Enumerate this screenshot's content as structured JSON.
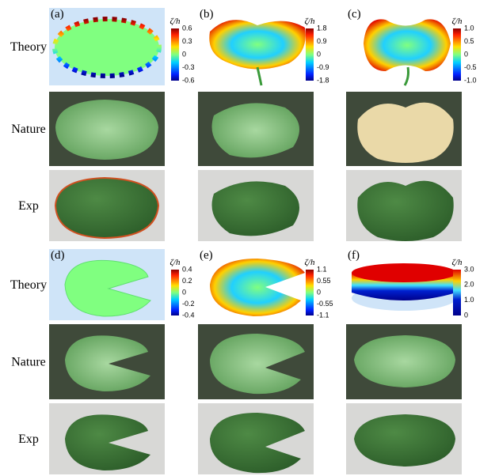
{
  "top_block": {
    "row_labels": [
      "Theory",
      "Nature",
      "Exp"
    ]
  },
  "bottom_block": {
    "row_labels": [
      "Theory",
      "Nature",
      "Exp"
    ]
  },
  "panels": [
    {
      "label": "(a)",
      "colorbar": {
        "label": "ζ/h",
        "ticks": [
          "0.6",
          "0.3",
          "0",
          "-0.3",
          "-0.6"
        ]
      }
    },
    {
      "label": "(b)",
      "colorbar": {
        "label": "ζ/h",
        "ticks": [
          "1.8",
          "0.9",
          "0",
          "-0.9",
          "-1.8"
        ]
      }
    },
    {
      "label": "(c)",
      "colorbar": {
        "label": "ζ/h",
        "ticks": [
          "1.0",
          "0.5",
          "0",
          "-0.5",
          "-1.0"
        ]
      }
    },
    {
      "label": "(d)",
      "colorbar": {
        "label": "ζ/h",
        "ticks": [
          "0.4",
          "0.2",
          "0",
          "-0.2",
          "-0.4"
        ]
      }
    },
    {
      "label": "(e)",
      "colorbar": {
        "label": "ζ/h",
        "ticks": [
          "1.1",
          "0.55",
          "0",
          "-0.55",
          "-1.1"
        ]
      }
    },
    {
      "label": "(f)",
      "colorbar": {
        "label": "ζ/h",
        "ticks": [
          "3.0",
          "2.0",
          "1.0",
          "0"
        ]
      }
    }
  ]
}
